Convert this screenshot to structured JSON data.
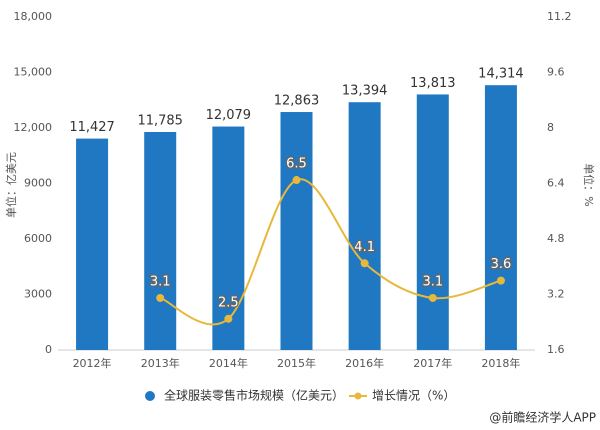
{
  "chart_data": {
    "type": "bar_line",
    "categories": [
      "2012年",
      "2013年",
      "2014年",
      "2015年",
      "2016年",
      "2017年",
      "2018年"
    ],
    "series": [
      {
        "name": "全球服装零售市场规模（亿美元）",
        "color": "#1f78c1",
        "type": "bar",
        "values": [
          11427,
          11785,
          12079,
          12863,
          13394,
          13813,
          14314
        ],
        "value_labels": [
          "11,427",
          "11,785",
          "12,079",
          "12,863",
          "13,394",
          "13,813",
          "14,314"
        ]
      },
      {
        "name": "增长情况（%）",
        "color": "#e8b83a",
        "type": "line",
        "axis": "y2",
        "values": [
          null,
          3.1,
          2.5,
          6.5,
          4.1,
          3.1,
          3.6
        ]
      }
    ],
    "ylabel": "单位：亿美元",
    "y2label": "单位：%",
    "ylim": [
      0,
      18000
    ],
    "yticks": [
      0,
      3000,
      6000,
      9000,
      {
        "value": 12000,
        "label": "12,000"
      },
      {
        "value": 15000,
        "label": "15,000"
      },
      {
        "value": 18000,
        "label": "18,000"
      }
    ],
    "y2lim": [
      1.6,
      11.2
    ],
    "y2ticks": [
      1.6,
      3.2,
      4.8,
      6.4,
      8,
      9.6,
      11.2
    ],
    "grid": false,
    "legend": "bottom",
    "source": "@前瞻经济学人APP"
  }
}
